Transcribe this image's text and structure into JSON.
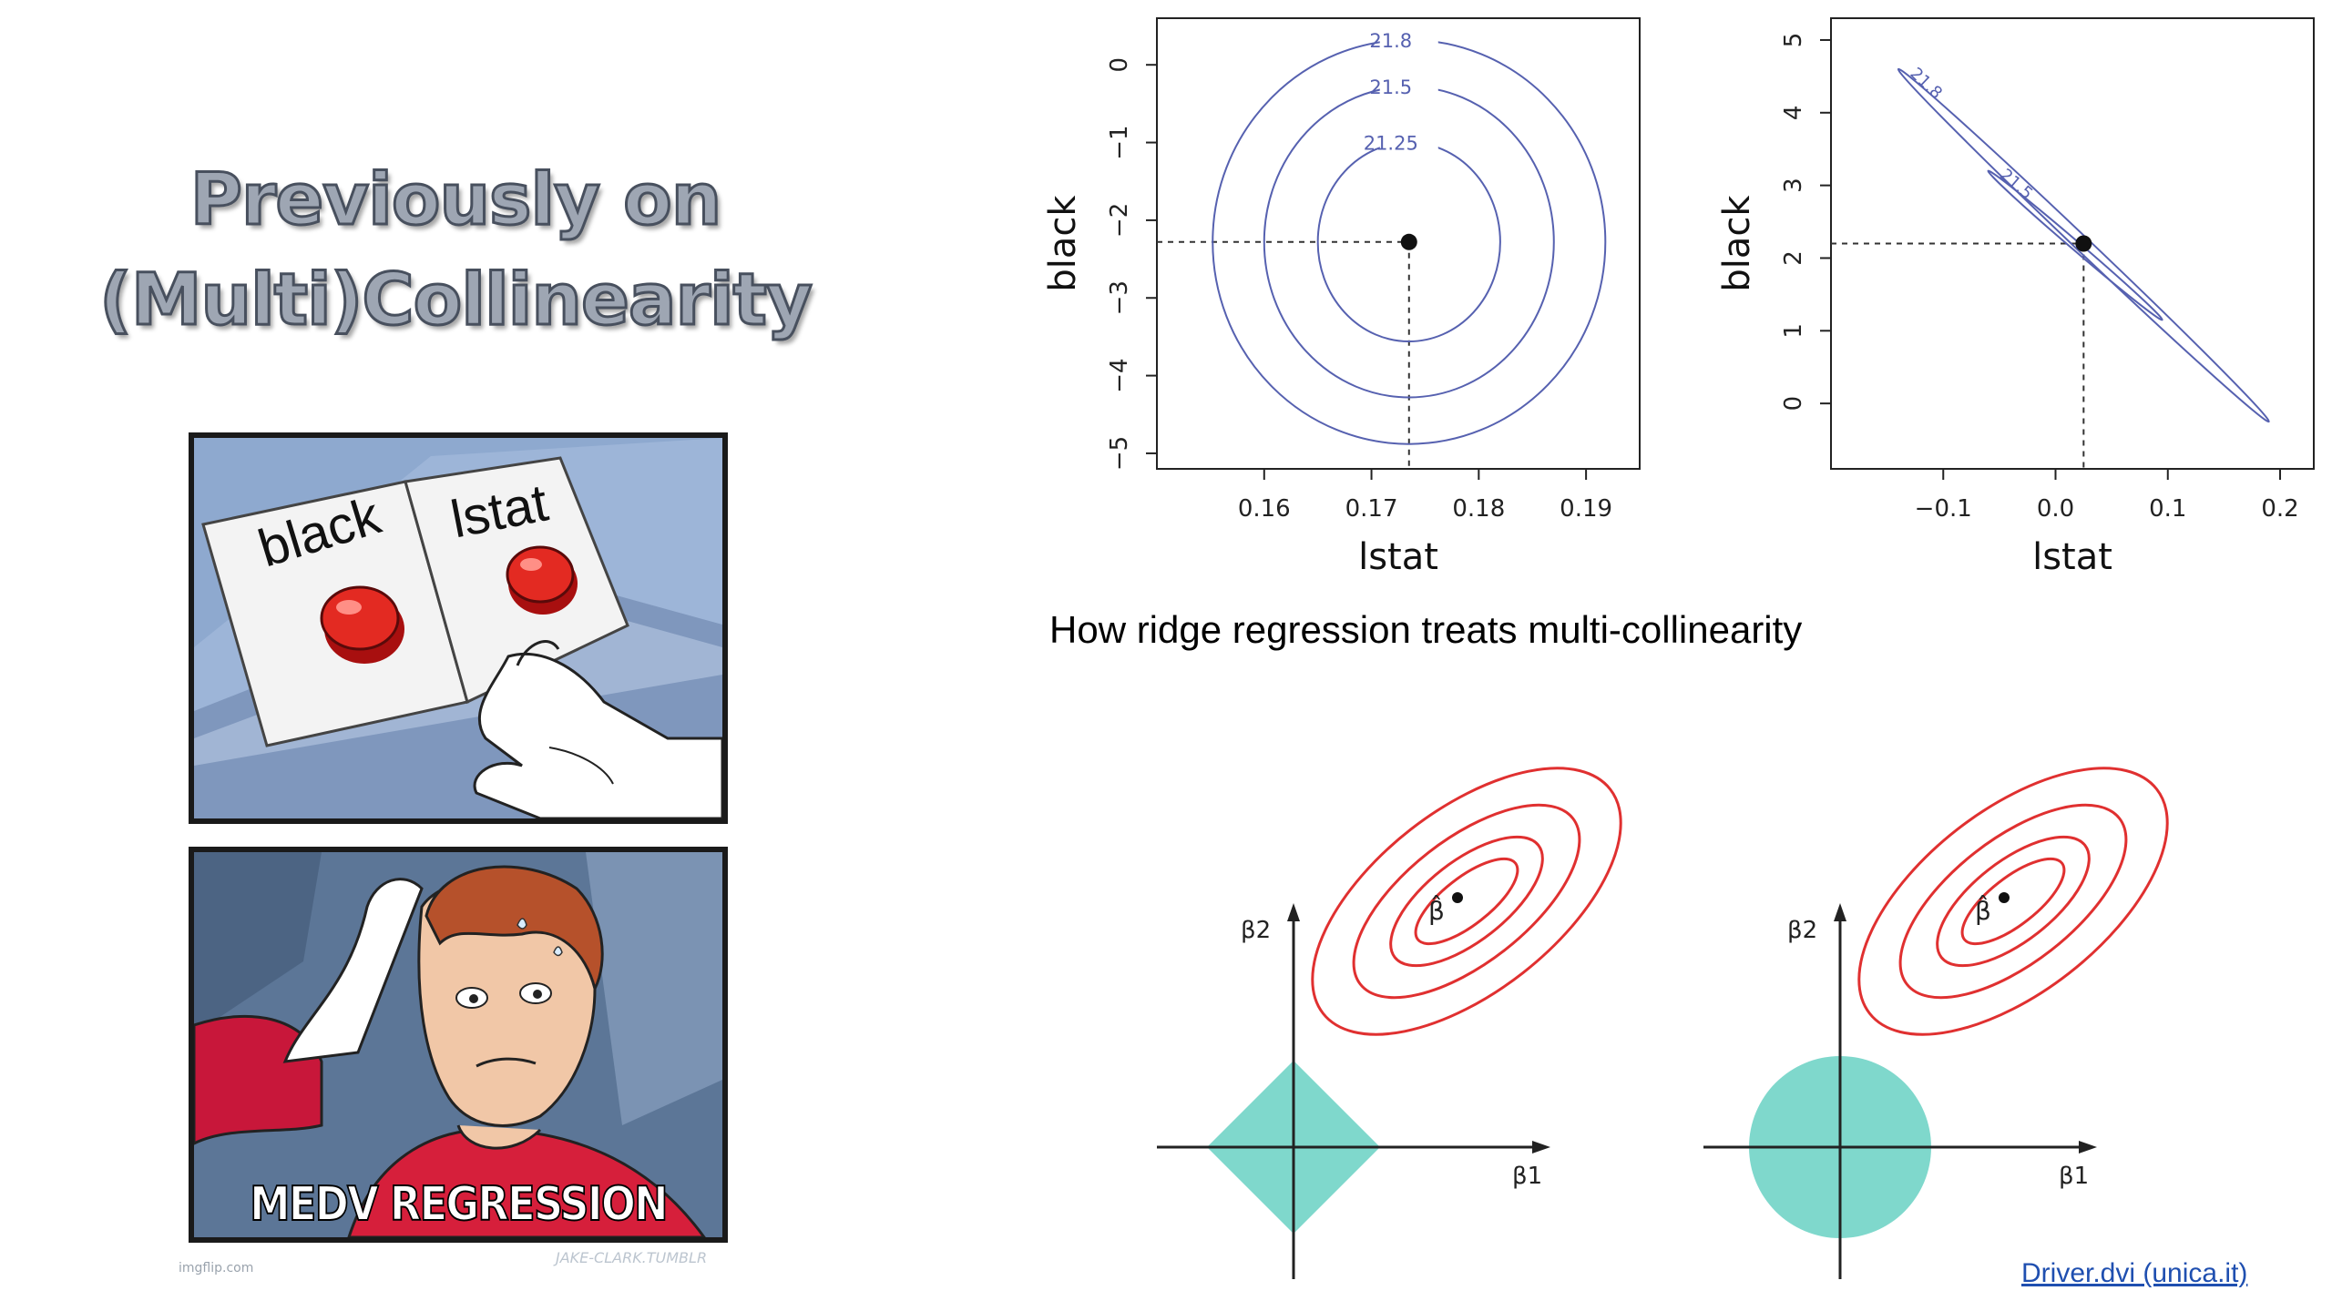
{
  "title": {
    "line1": "Previously on",
    "line2": "(Multi)Collinearity"
  },
  "meme": {
    "button_left_label": "black",
    "button_right_label": "lstat",
    "caption": "MEDV REGRESSION",
    "credit_imgflip": "imgflip.com",
    "credit_artist": "JAKE-CLARK.TUMBLR"
  },
  "subtitle": "How ridge regression treats multi-collinearity",
  "source_link": "Driver.dvi (unica.it)",
  "colors": {
    "contour": "#5661b0",
    "ellipse": "#e03030",
    "constraint": "#7fd8cc",
    "title_fill": "#9ea6b3"
  },
  "chart_data": [
    {
      "type": "contour",
      "xlabel": "lstat",
      "ylabel": "black",
      "xlim": [
        0.15,
        0.195
      ],
      "ylim": [
        -5.2,
        0.6
      ],
      "xticks": [
        0.16,
        0.17,
        0.18,
        0.19
      ],
      "xtick_labels": [
        "0.16",
        "0.17",
        "0.18",
        "0.19"
      ],
      "yticks": [
        -5,
        -4,
        -3,
        -2,
        -1,
        0
      ],
      "ytick_labels": [
        "−5",
        "−4",
        "−3",
        "−2",
        "−1",
        "0"
      ],
      "point": {
        "x": 0.1735,
        "y": -2.28
      },
      "contours": [
        {
          "level": "21.25",
          "rx": 0.0085,
          "ry": 1.28
        },
        {
          "level": "21.5",
          "rx": 0.0135,
          "ry": 2.0
        },
        {
          "level": "21.8",
          "rx": 0.0183,
          "ry": 2.6
        }
      ]
    },
    {
      "type": "contour",
      "xlabel": "lstat",
      "ylabel": "black",
      "xlim": [
        -0.2,
        0.23
      ],
      "ylim": [
        -0.9,
        5.3
      ],
      "xticks": [
        -0.1,
        0.0,
        0.1,
        0.2
      ],
      "xtick_labels": [
        "−0.1",
        "0.0",
        "0.1",
        "0.2"
      ],
      "yticks": [
        0,
        1,
        2,
        3,
        4,
        5
      ],
      "ytick_labels": [
        "0",
        "1",
        "2",
        "3",
        "4",
        "5"
      ],
      "point": {
        "x": 0.025,
        "y": 2.2
      },
      "contours": [
        {
          "level": "21.5",
          "x1": -0.06,
          "y1": 3.2,
          "x2": 0.095,
          "y2": 1.15,
          "halfwidth": 0.12
        },
        {
          "level": "21.8",
          "x1": -0.14,
          "y1": 4.6,
          "x2": 0.19,
          "y2": -0.25,
          "halfwidth": 0.2
        }
      ]
    },
    {
      "type": "ridge-vs-lasso",
      "constraint": "diamond",
      "xlabel": "β1",
      "ylabel": "β2",
      "estimate_label": "β̂"
    },
    {
      "type": "ridge-vs-lasso",
      "constraint": "circle",
      "xlabel": "β1",
      "ylabel": "β2",
      "estimate_label": "β̂"
    }
  ]
}
